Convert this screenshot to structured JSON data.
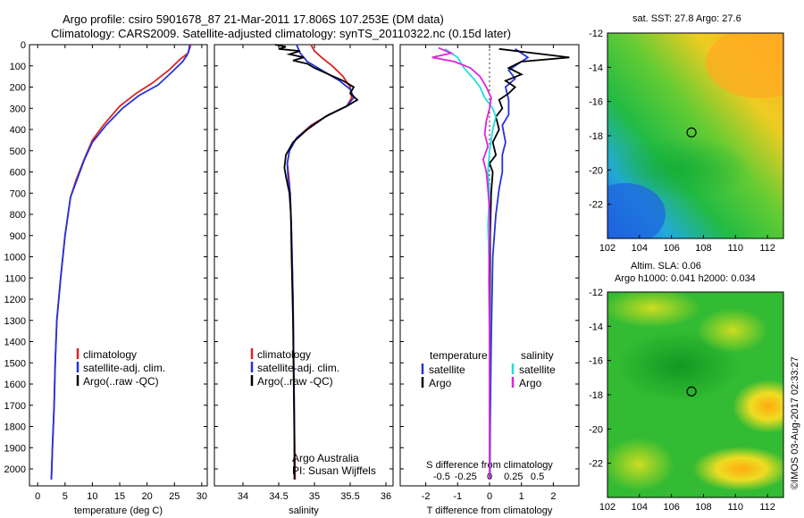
{
  "header": {
    "title_line1": "Argo profile: csiro 5901678_87 21-Mar-2011 17.806S 107.253E (DM data)",
    "title_line2": "Climatology: CARS2009. Satellite-adjusted climatology: synTS_20110322.nc (0.15d later)"
  },
  "colors": {
    "climatology": "#dd2222",
    "satellite": "#2233dd",
    "argo": "#000000",
    "sal_satellite": "#22dddd",
    "sal_argo": "#dd22dd"
  },
  "chart_data": [
    {
      "type": "line",
      "id": "temperature",
      "xlabel": "temperature (deg C)",
      "ylabel": "",
      "xlim": [
        -1.5,
        31
      ],
      "ylim": [
        2080,
        0
      ],
      "xticks": [
        0,
        5,
        10,
        15,
        20,
        25,
        30
      ],
      "yticks": [
        0,
        100,
        200,
        300,
        400,
        500,
        600,
        700,
        800,
        900,
        1000,
        1100,
        1200,
        1300,
        1400,
        1500,
        1600,
        1700,
        1800,
        1900,
        2000
      ],
      "legend": {
        "placement": "lower-left",
        "entries": [
          "climatology",
          "satellite-adj. clim.",
          "Argo(..raw -QC)"
        ]
      },
      "series": [
        {
          "name": "climatology",
          "color": "#dd2222",
          "points": [
            [
              28,
              0
            ],
            [
              27.5,
              40
            ],
            [
              26,
              70
            ],
            [
              24,
              120
            ],
            [
              21,
              180
            ],
            [
              18,
              230
            ],
            [
              15,
              290
            ],
            [
              12,
              380
            ],
            [
              10,
              450
            ],
            [
              8.5,
              540
            ],
            [
              7,
              640
            ],
            [
              6,
              720
            ],
            [
              5,
              900
            ],
            [
              4.2,
              1100
            ],
            [
              3.5,
              1300
            ],
            [
              3.2,
              1500
            ],
            [
              3,
              1700
            ],
            [
              2.7,
              1900
            ],
            [
              2.5,
              2050
            ]
          ]
        },
        {
          "name": "satellite-adj. clim.",
          "color": "#2233dd",
          "points": [
            [
              27.8,
              0
            ],
            [
              27.6,
              30
            ],
            [
              27.3,
              50
            ],
            [
              26.5,
              80
            ],
            [
              24.5,
              130
            ],
            [
              22,
              190
            ],
            [
              18.5,
              240
            ],
            [
              15.5,
              300
            ],
            [
              12.5,
              380
            ],
            [
              10,
              460
            ],
            [
              8.5,
              545
            ],
            [
              7,
              650
            ],
            [
              6,
              720
            ],
            [
              5,
              900
            ],
            [
              4.2,
              1100
            ],
            [
              3.5,
              1300
            ],
            [
              3.2,
              1500
            ],
            [
              3,
              1700
            ],
            [
              2.7,
              1900
            ],
            [
              2.5,
              2050
            ]
          ]
        }
      ]
    },
    {
      "type": "line",
      "id": "salinity",
      "xlabel": "salinity",
      "ylabel": "",
      "xlim": [
        33.6,
        36.1
      ],
      "ylim": [
        2080,
        0
      ],
      "xticks": [
        34,
        34.5,
        35,
        35.5,
        36
      ],
      "xtick_labels": [
        "34",
        "34.5",
        "35",
        "35.5",
        "36"
      ],
      "legend": {
        "placement": "lower-left",
        "entries": [
          "climatology",
          "satellite-adj. clim.",
          "Argo(..raw -QC)"
        ]
      },
      "series": [
        {
          "name": "climatology",
          "color": "#dd2222",
          "points": [
            [
              34.95,
              0
            ],
            [
              35.0,
              30
            ],
            [
              35.1,
              60
            ],
            [
              35.25,
              100
            ],
            [
              35.4,
              150
            ],
            [
              35.5,
              200
            ],
            [
              35.52,
              250
            ],
            [
              35.45,
              290
            ],
            [
              35.2,
              330
            ],
            [
              34.95,
              380
            ],
            [
              34.75,
              440
            ],
            [
              34.65,
              500
            ],
            [
              34.62,
              560
            ],
            [
              34.64,
              620
            ],
            [
              34.66,
              700
            ],
            [
              34.68,
              900
            ],
            [
              34.7,
              1200
            ],
            [
              34.71,
              1500
            ],
            [
              34.72,
              1800
            ],
            [
              34.73,
              2050
            ]
          ]
        },
        {
          "name": "satellite-adj. clim.",
          "color": "#2233dd",
          "points": [
            [
              34.75,
              0
            ],
            [
              34.8,
              40
            ],
            [
              34.9,
              80
            ],
            [
              35.1,
              120
            ],
            [
              35.35,
              170
            ],
            [
              35.5,
              210
            ],
            [
              35.55,
              250
            ],
            [
              35.45,
              290
            ],
            [
              35.2,
              330
            ],
            [
              34.95,
              385
            ],
            [
              34.75,
              440
            ],
            [
              34.65,
              500
            ],
            [
              34.62,
              560
            ],
            [
              34.63,
              620
            ],
            [
              34.66,
              700
            ],
            [
              34.68,
              900
            ],
            [
              34.7,
              1200
            ],
            [
              34.71,
              1500
            ],
            [
              34.72,
              1800
            ],
            [
              34.72,
              2050
            ]
          ]
        },
        {
          "name": "Argo(..raw -QC)",
          "color": "#000000",
          "points": [
            [
              34.45,
              0
            ],
            [
              34.6,
              10
            ],
            [
              34.5,
              20
            ],
            [
              34.8,
              30
            ],
            [
              34.65,
              45
            ],
            [
              34.85,
              60
            ],
            [
              34.7,
              75
            ],
            [
              34.9,
              90
            ],
            [
              35.0,
              110
            ],
            [
              35.2,
              140
            ],
            [
              35.4,
              170
            ],
            [
              35.55,
              200
            ],
            [
              35.5,
              230
            ],
            [
              35.6,
              260
            ],
            [
              35.45,
              290
            ],
            [
              35.15,
              340
            ],
            [
              34.9,
              400
            ],
            [
              34.7,
              460
            ],
            [
              34.6,
              520
            ],
            [
              34.58,
              580
            ],
            [
              34.6,
              620
            ],
            [
              34.65,
              700
            ],
            [
              34.67,
              800
            ],
            [
              34.68,
              1000
            ],
            [
              34.7,
              1300
            ],
            [
              34.71,
              1600
            ],
            [
              34.72,
              1900
            ],
            [
              34.72,
              2050
            ]
          ]
        }
      ]
    },
    {
      "type": "line",
      "id": "differences",
      "xlabel": "T difference from climatology",
      "xlabel2": "S difference from climatology",
      "ylabel": "",
      "xlim": [
        -2.8,
        2.8
      ],
      "ylim": [
        2080,
        0
      ],
      "xticks": [
        -2,
        -1,
        0,
        1,
        2
      ],
      "xticks2": [
        -0.5,
        -0.25,
        0,
        0.25,
        0.5
      ],
      "xticks2_labels": [
        "-0.5",
        "-0.25",
        "0",
        "0.25",
        "0.5"
      ],
      "legend": {
        "placement": "lower-left",
        "headers": [
          "temperature",
          "salinity"
        ],
        "entries": [
          "satellite",
          "Argo",
          "satellite",
          "Argo"
        ]
      },
      "series": [
        {
          "name": "satellite",
          "group": "temperature",
          "color": "#2233dd",
          "points": [
            [
              0.8,
              20
            ],
            [
              1.2,
              60
            ],
            [
              0.9,
              90
            ],
            [
              0.6,
              120
            ],
            [
              0.8,
              160
            ],
            [
              0.5,
              200
            ],
            [
              0.6,
              260
            ],
            [
              0.6,
              330
            ],
            [
              0.4,
              380
            ],
            [
              0.5,
              460
            ],
            [
              0.4,
              520
            ],
            [
              0.4,
              600
            ],
            [
              0.3,
              680
            ],
            [
              0.2,
              800
            ],
            [
              0.1,
              1000
            ],
            [
              0.05,
              1400
            ],
            [
              0.02,
              1800
            ],
            [
              0.01,
              2050
            ]
          ]
        },
        {
          "name": "Argo",
          "group": "temperature",
          "color": "#000000",
          "points": [
            [
              0.3,
              20
            ],
            [
              2.5,
              60
            ],
            [
              1.0,
              80
            ],
            [
              0.6,
              110
            ],
            [
              1.0,
              140
            ],
            [
              0.5,
              170
            ],
            [
              0.8,
              200
            ],
            [
              0.6,
              230
            ],
            [
              0.3,
              260
            ],
            [
              0.4,
              300
            ],
            [
              0.2,
              340
            ],
            [
              0.3,
              400
            ],
            [
              0.1,
              460
            ],
            [
              0.2,
              520
            ],
            [
              0.0,
              560
            ],
            [
              0.1,
              600
            ],
            [
              0.05,
              700
            ],
            [
              0.02,
              900
            ],
            [
              0.01,
              1200
            ],
            [
              0.0,
              1500
            ],
            [
              0.0,
              1800
            ],
            [
              0.0,
              2050
            ]
          ]
        },
        {
          "name": "satellite",
          "group": "salinity",
          "color": "#22dddd",
          "points": [
            [
              -1.4,
              20
            ],
            [
              -1.0,
              60
            ],
            [
              -0.8,
              110
            ],
            [
              -0.5,
              160
            ],
            [
              -0.3,
              200
            ],
            [
              -0.15,
              250
            ],
            [
              0.1,
              300
            ],
            [
              0.2,
              340
            ],
            [
              0.1,
              400
            ],
            [
              0.0,
              500
            ],
            [
              -0.05,
              600
            ],
            [
              0.0,
              700
            ],
            [
              -0.05,
              850
            ],
            [
              -0.02,
              1000
            ],
            [
              0,
              1300
            ],
            [
              0,
              1700
            ],
            [
              0,
              2050
            ]
          ]
        },
        {
          "name": "Argo",
          "group": "salinity",
          "color": "#dd22dd",
          "points": [
            [
              -1.6,
              15
            ],
            [
              -1.2,
              40
            ],
            [
              -1.8,
              60
            ],
            [
              -1.1,
              80
            ],
            [
              -0.6,
              110
            ],
            [
              -0.3,
              150
            ],
            [
              -0.1,
              200
            ],
            [
              0.05,
              250
            ],
            [
              0.0,
              300
            ],
            [
              -0.1,
              360
            ],
            [
              -0.15,
              420
            ],
            [
              -0.05,
              480
            ],
            [
              -0.2,
              540
            ],
            [
              -0.1,
              600
            ],
            [
              -0.05,
              680
            ],
            [
              0.0,
              780
            ],
            [
              0.0,
              900
            ],
            [
              -0.02,
              1100
            ],
            [
              0,
              1400
            ],
            [
              0,
              1800
            ],
            [
              0,
              2050
            ]
          ]
        }
      ]
    },
    {
      "type": "heatmap",
      "id": "sst-map",
      "title": "sat. SST: 27.8 Argo: 27.6",
      "xlim": [
        102,
        113
      ],
      "ylim": [
        -24,
        -12
      ],
      "xticks": [
        102,
        104,
        106,
        108,
        110,
        112
      ],
      "yticks": [
        -12,
        -14,
        -16,
        -18,
        -20,
        -22
      ],
      "marker": {
        "lon": 107.253,
        "lat": -17.806
      }
    },
    {
      "type": "heatmap",
      "id": "sla-map",
      "title": "Altim. SLA: 0.06",
      "subtitle": "Argo h1000: 0.041 h2000: 0.034",
      "xlim": [
        102,
        113
      ],
      "ylim": [
        -24,
        -12
      ],
      "xticks": [
        102,
        104,
        106,
        108,
        110,
        112
      ],
      "yticks": [
        -12,
        -14,
        -16,
        -18,
        -20,
        -22
      ],
      "marker": {
        "lon": 107.253,
        "lat": -17.806
      }
    }
  ],
  "panels": {
    "argo_note_line1": "Argo Australia",
    "argo_note_line2": "PI: Susan Wijffels"
  },
  "footer": {
    "credit": "©IMOS 03-Aug-2017 02:33:27"
  }
}
